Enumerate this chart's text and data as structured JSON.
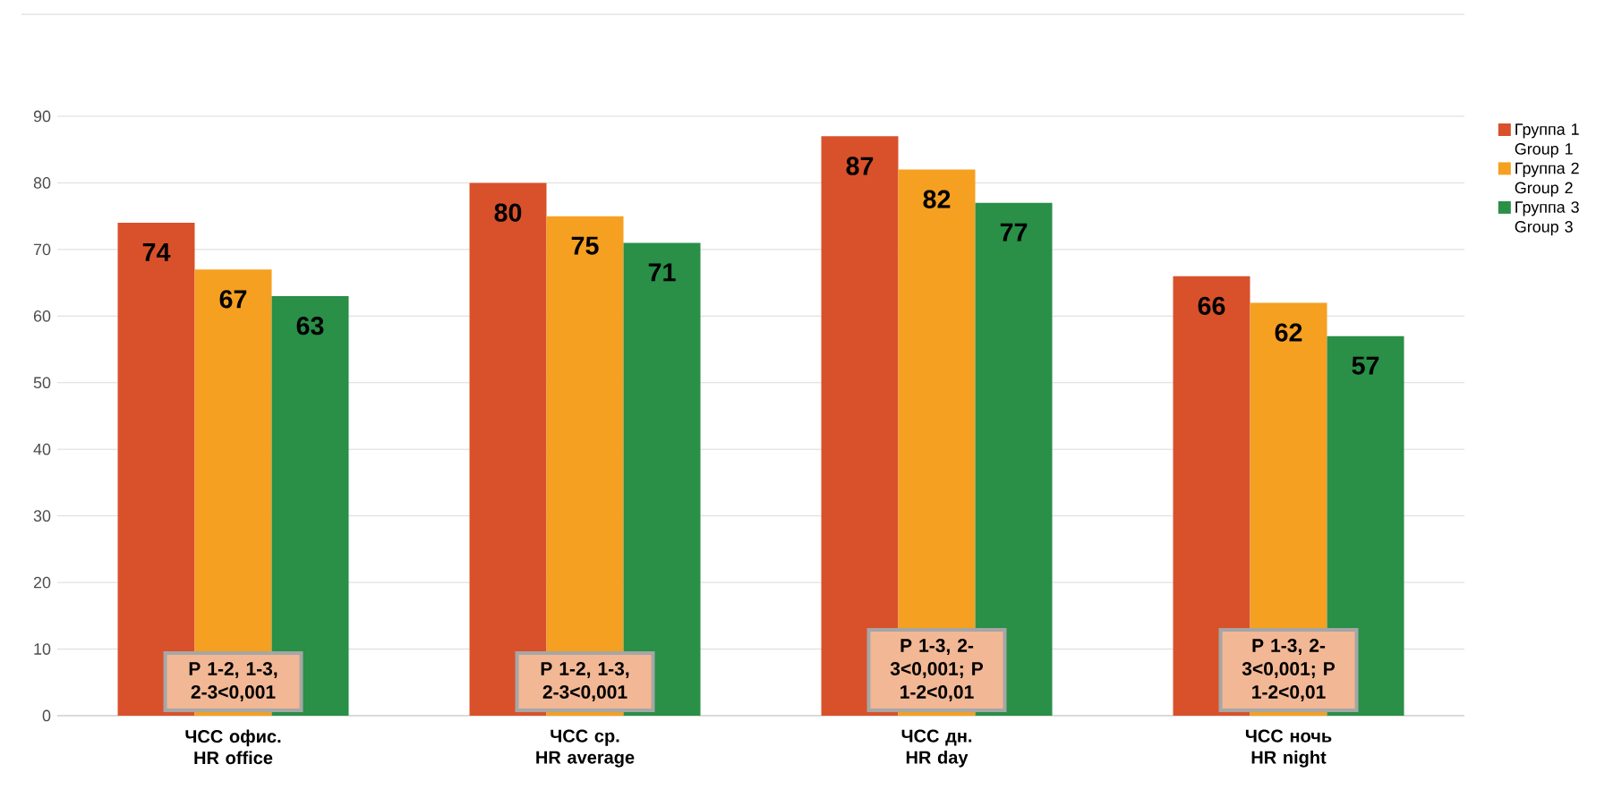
{
  "chart_data": {
    "type": "bar",
    "categories": [
      "ЧСС офис. HR office",
      "ЧСС ср. HR average",
      "ЧСС дн. HR day",
      "ЧСС ночь HR night"
    ],
    "series": [
      {
        "name": "Группа 1 Group 1",
        "color": "#d9512b",
        "values": [
          74,
          80,
          87,
          66
        ]
      },
      {
        "name": "Группа 2 Group 2",
        "color": "#f5a020",
        "values": [
          67,
          75,
          82,
          62
        ]
      },
      {
        "name": "Группа 3 Group 3",
        "color": "#2a8f47",
        "values": [
          63,
          71,
          77,
          57
        ]
      }
    ],
    "ylim": [
      0,
      90
    ],
    "yticks": [
      0,
      10,
      20,
      30,
      40,
      50,
      60,
      70,
      80,
      90
    ],
    "grid": "y",
    "legend": "right",
    "data_labels": true,
    "annotations": [
      "P 1-2, 1-3, 2-3<0,001",
      "P 1-2, 1-3, 2-3<0,001",
      "P 1-3, 2-3<0,001; P 1-2<0,01",
      "P 1-3, 2-3<0,001; P 1-2<0,01"
    ]
  }
}
